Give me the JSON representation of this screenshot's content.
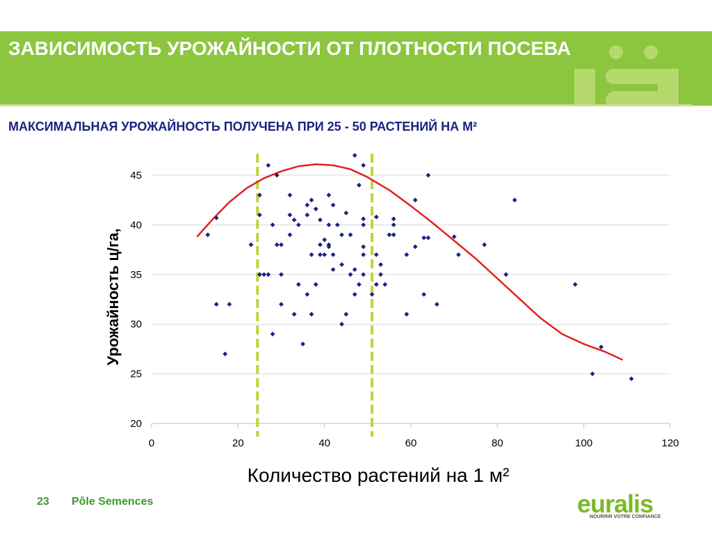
{
  "slide": {
    "title": "ЗАВИСИМОСТЬ УРОЖАЙНОСТИ ОТ ПЛОТНОСТИ ПОСЕВА",
    "subtitle": "МАКСИМАЛЬНАЯ УРОЖАЙНОСТЬ ПОЛУЧЕНА ПРИ 25 - 50 РАСТЕНИЙ НА М²",
    "page_number": "23",
    "footer_text": "Pôle Semences",
    "logo_text": "euralis",
    "logo_tagline": "NOURRIR VOTRE CONFIANCE",
    "header_decoration_text": "ïa"
  },
  "colors": {
    "header_green": "#8cc63f",
    "title_text": "#ffffff",
    "subtitle_text": "#1a237e",
    "points": "#1a237e",
    "trend_line": "#e02020",
    "range_lines": "#c2d33a",
    "footer_green": "#3a9a2a"
  },
  "chart_data": {
    "type": "scatter",
    "xlabel": "Количество растений на 1 м²",
    "ylabel": "Урожайность ц/га,",
    "xlim": [
      0,
      120
    ],
    "ylim": [
      20,
      45
    ],
    "xticks": [
      "0",
      "20",
      "40",
      "60",
      "80",
      "100",
      "120"
    ],
    "yticks": [
      "20",
      "25",
      "30",
      "35",
      "40",
      "45"
    ],
    "grid": "horizontal",
    "series": [
      {
        "kind": "points",
        "points": [
          [
            13,
            39
          ],
          [
            15,
            40.7
          ],
          [
            15,
            32
          ],
          [
            17,
            27
          ],
          [
            18,
            32
          ],
          [
            23,
            38
          ],
          [
            25,
            43
          ],
          [
            25,
            41
          ],
          [
            25,
            35
          ],
          [
            26,
            35
          ],
          [
            27,
            35
          ],
          [
            27,
            46
          ],
          [
            28,
            40
          ],
          [
            28,
            29
          ],
          [
            29,
            45
          ],
          [
            29,
            38
          ],
          [
            30,
            38
          ],
          [
            30,
            35
          ],
          [
            30,
            32
          ],
          [
            32,
            43
          ],
          [
            32,
            41
          ],
          [
            32,
            39
          ],
          [
            33,
            40.5
          ],
          [
            33,
            31
          ],
          [
            34,
            40
          ],
          [
            34,
            34
          ],
          [
            35,
            28
          ],
          [
            36,
            42
          ],
          [
            36,
            41
          ],
          [
            36,
            33
          ],
          [
            37,
            42.5
          ],
          [
            37,
            37
          ],
          [
            37,
            31
          ],
          [
            38,
            41.6
          ],
          [
            38,
            34
          ],
          [
            39,
            40.5
          ],
          [
            39,
            38
          ],
          [
            39,
            37
          ],
          [
            40,
            38.5
          ],
          [
            40,
            37
          ],
          [
            41,
            43
          ],
          [
            41,
            40
          ],
          [
            41,
            38
          ],
          [
            41,
            37.8
          ],
          [
            42,
            42
          ],
          [
            42,
            37
          ],
          [
            42,
            35.5
          ],
          [
            43,
            40
          ],
          [
            44,
            36
          ],
          [
            44,
            39
          ],
          [
            44,
            30
          ],
          [
            45,
            41.2
          ],
          [
            45,
            31
          ],
          [
            46,
            39
          ],
          [
            46,
            35
          ],
          [
            47,
            47
          ],
          [
            47,
            35.5
          ],
          [
            47,
            33
          ],
          [
            48,
            44
          ],
          [
            48,
            34
          ],
          [
            49,
            46
          ],
          [
            49,
            40.6
          ],
          [
            49,
            40
          ],
          [
            49,
            37.8
          ],
          [
            49,
            37
          ],
          [
            49,
            35
          ],
          [
            51,
            33
          ],
          [
            52,
            40.8
          ],
          [
            52,
            37
          ],
          [
            52,
            34
          ],
          [
            53,
            36
          ],
          [
            53,
            35
          ],
          [
            54,
            34
          ],
          [
            55,
            39
          ],
          [
            56,
            40.6
          ],
          [
            56,
            40
          ],
          [
            56,
            39
          ],
          [
            59,
            37
          ],
          [
            59,
            31
          ],
          [
            61,
            42.5
          ],
          [
            61,
            37.8
          ],
          [
            63,
            38.7
          ],
          [
            63,
            33
          ],
          [
            64,
            45
          ],
          [
            64,
            38.7
          ],
          [
            66,
            32
          ],
          [
            70,
            38.8
          ],
          [
            71,
            37
          ],
          [
            77,
            38
          ],
          [
            82,
            35
          ],
          [
            84,
            42.5
          ],
          [
            98,
            34
          ],
          [
            102,
            25
          ],
          [
            104,
            27.7
          ],
          [
            111,
            24.5
          ]
        ]
      },
      {
        "kind": "trend",
        "points": [
          [
            10.5,
            38.8
          ],
          [
            14,
            40.5
          ],
          [
            18,
            42.3
          ],
          [
            22,
            43.7
          ],
          [
            26,
            44.7
          ],
          [
            30,
            45.4
          ],
          [
            34,
            45.9
          ],
          [
            38,
            46.1
          ],
          [
            42,
            46.0
          ],
          [
            46,
            45.6
          ],
          [
            50,
            44.8
          ],
          [
            55,
            43.5
          ],
          [
            60,
            41.9
          ],
          [
            65,
            40.2
          ],
          [
            70,
            38.4
          ],
          [
            75,
            36.6
          ],
          [
            80,
            34.6
          ],
          [
            85,
            32.6
          ],
          [
            90,
            30.6
          ],
          [
            95,
            29.0
          ],
          [
            100,
            28.0
          ],
          [
            105,
            27.2
          ],
          [
            109,
            26.4
          ]
        ]
      }
    ],
    "vlines": [
      24.5,
      51
    ]
  }
}
